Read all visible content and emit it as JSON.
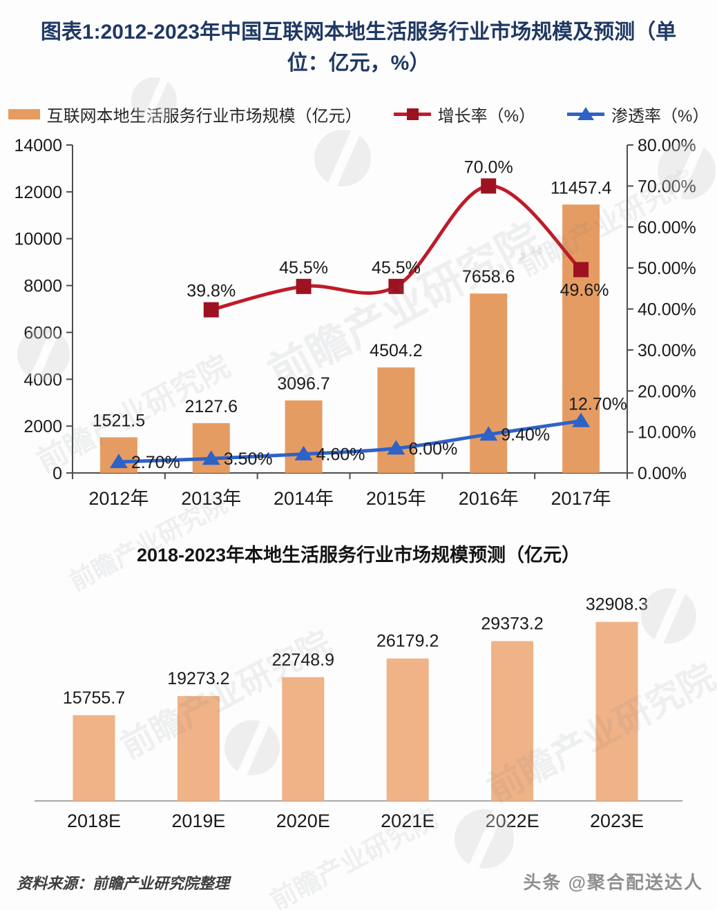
{
  "header": {
    "title_lines": [
      "图表1:2012-2023年中国互联网本地生活服务行业市场规模及预测（单",
      "位：亿元，%）"
    ]
  },
  "legend": {
    "items": [
      {
        "label": "互联网本地生活服务行业市场规模（亿元）",
        "swatch": "bar",
        "color": "#E59C63"
      },
      {
        "label": "增长率（%）",
        "swatch": "line-square",
        "color": "#C01A28"
      },
      {
        "label": "渗透率（%）",
        "swatch": "line-triangle",
        "color": "#2E62C6"
      }
    ]
  },
  "chart_data": [
    {
      "type": "bar",
      "subtype": "combo-bar-line",
      "categories": [
        "2012年",
        "2013年",
        "2014年",
        "2015年",
        "2016年",
        "2017年"
      ],
      "series": [
        {
          "name": "互联网本地生活服务行业市场规模（亿元）",
          "chart": "bar",
          "axis": "left",
          "color": "#E59C63",
          "values": [
            1521.5,
            2127.6,
            3096.7,
            4504.2,
            7658.6,
            11457.4
          ],
          "labels": [
            "1521.5",
            "2127.6",
            "3096.7",
            "4504.2",
            "7658.6",
            "11457.4"
          ]
        },
        {
          "name": "增长率（%）",
          "chart": "line",
          "marker": "square",
          "axis": "right",
          "color": "#C01A28",
          "marker_color": "#9C1220",
          "values": [
            null,
            39.8,
            45.5,
            45.5,
            70.0,
            49.6
          ],
          "labels": [
            "",
            "39.8%",
            "45.5%",
            "45.5%",
            "70.0%",
            "49.6%"
          ],
          "label_pos": [
            "",
            "above",
            "above",
            "above",
            "above",
            "below"
          ]
        },
        {
          "name": "渗透率（%）",
          "chart": "line",
          "marker": "triangle",
          "axis": "right",
          "color": "#2E62C6",
          "marker_color": "#2E62C6",
          "values": [
            2.7,
            3.5,
            4.6,
            6.0,
            9.4,
            12.7
          ],
          "labels": [
            "2.70%",
            "3.50%",
            "4.60%",
            "6.00%",
            "9.40%",
            "12.70%"
          ],
          "label_pos": [
            "right",
            "right",
            "right",
            "right",
            "right",
            "above"
          ]
        }
      ],
      "left_axis": {
        "min": 0,
        "max": 14000,
        "step": 2000,
        "ticks": [
          "14000",
          "12000",
          "10000",
          "8000",
          "6000",
          "4000",
          "2000",
          "0"
        ]
      },
      "right_axis": {
        "min": 0,
        "max": 80,
        "step": 10,
        "ticks": [
          "80.00%",
          "70.00%",
          "60.00%",
          "50.00%",
          "40.00%",
          "30.00%",
          "20.00%",
          "10.00%",
          "0.00%"
        ]
      },
      "grid": false,
      "legend_position": "top"
    },
    {
      "type": "bar",
      "title": "2018-2023年本地生活服务行业市场规模预测（亿元）",
      "categories": [
        "2018E",
        "2019E",
        "2020E",
        "2021E",
        "2022E",
        "2023E"
      ],
      "values": [
        15755.7,
        19273.2,
        22748.9,
        26179.2,
        29373.2,
        32908.3
      ],
      "labels": [
        "15755.7",
        "19273.2",
        "22748.9",
        "26179.2",
        "29373.2",
        "32908.3"
      ],
      "color": "#F0B287",
      "ylim": [
        0,
        33000
      ],
      "grid": false
    }
  ],
  "footer": {
    "source": "资料来源：前瞻产业研究院整理",
    "credit": "头条 @聚合配送达人"
  },
  "watermark": {
    "text": "前瞻产业研究院"
  }
}
